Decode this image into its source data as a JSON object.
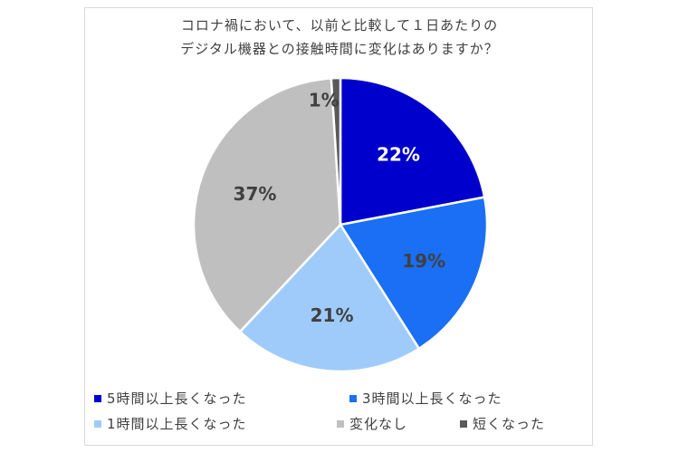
{
  "chart_data": {
    "type": "pie",
    "title": "コロナ禍において、以前と比較して１日あたりの\nデジタル機器との接触時間に変化はありますか？",
    "title_lines": [
      "コロナ禍において、以前と比較して１日あたりの",
      "デジタル機器との接触時間に変化はありますか？"
    ],
    "start_angle_deg": 0,
    "direction": "clockwise",
    "legend_position": "bottom",
    "slices": [
      {
        "label": "5時間以上長くなった",
        "value": 22,
        "display": "22%",
        "color": "#0000cc",
        "label_color": "#ffffff"
      },
      {
        "label": "3時間以上長くなった",
        "value": 19,
        "display": "19%",
        "color": "#1a6ff5",
        "label_color": "#404040"
      },
      {
        "label": "1時間以上長くなった",
        "value": 21,
        "display": "21%",
        "color": "#9fcbfa",
        "label_color": "#404040"
      },
      {
        "label": "変化なし",
        "value": 37,
        "display": "37%",
        "color": "#bfbfbf",
        "label_color": "#404040"
      },
      {
        "label": "短くなった",
        "value": 1,
        "display": "1%",
        "color": "#595959",
        "label_color": "#404040"
      }
    ]
  }
}
